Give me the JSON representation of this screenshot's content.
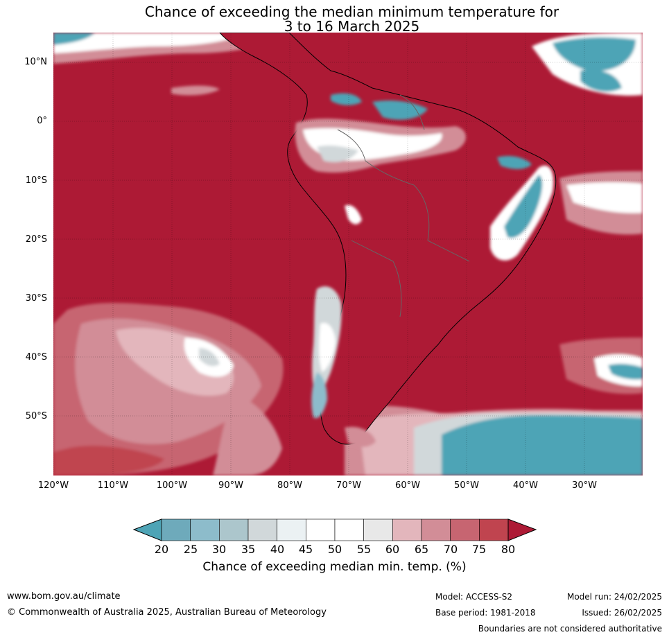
{
  "title": {
    "line1": "Chance of exceeding the median minimum temperature for",
    "line2": "3 to 16 March 2025"
  },
  "lat_labels": [
    "10°N",
    "0°",
    "10°S",
    "20°S",
    "30°S",
    "40°S",
    "50°S"
  ],
  "lon_labels": [
    "120°W",
    "110°W",
    "100°W",
    "90°W",
    "80°W",
    "70°W",
    "60°W",
    "50°W",
    "40°W",
    "30°W"
  ],
  "colorbar": {
    "ticks": [
      "20",
      "25",
      "30",
      "35",
      "40",
      "45",
      "50",
      "55",
      "60",
      "65",
      "70",
      "75",
      "80"
    ],
    "colors": [
      "#4ea4b6",
      "#6eaabb",
      "#8dbccb",
      "#acc6cc",
      "#d1d8da",
      "#ebf1f3",
      "#ffffff",
      "#ffffff",
      "#e8e8e8",
      "#e3b6bc",
      "#d28d97",
      "#c76571",
      "#c0444f",
      "#ad1a35"
    ],
    "label": "Chance of exceeding median min. temp. (%)"
  },
  "map": {
    "background_color": "#ad1a35",
    "regions": {
      "cool_blue": "#4ea4b6",
      "light_pink": "#d28d97",
      "white": "#ffffff"
    }
  },
  "footer": {
    "website": "www.bom.gov.au/climate",
    "copyright": "© Commonwealth of Australia 2025, Australian Bureau of Meteorology",
    "model": "Model: ACCESS-S2",
    "base_period": "Base period: 1981-2018",
    "model_run": "Model run: 24/02/2025",
    "issued": "Issued: 26/02/2025",
    "disclaimer": "Boundaries are not considered authoritative"
  }
}
